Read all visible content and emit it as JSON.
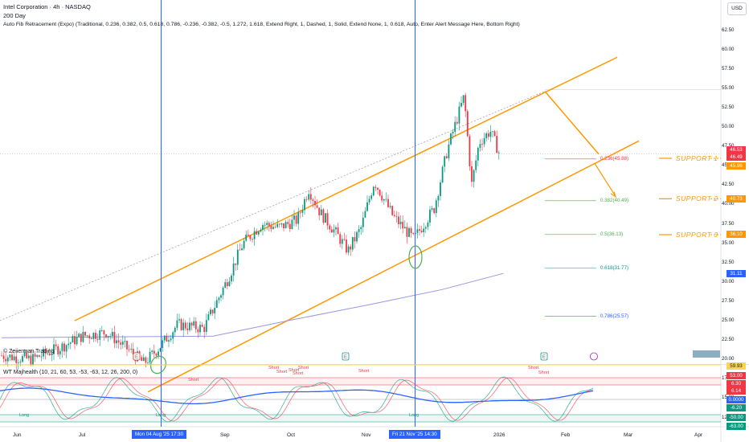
{
  "legend": {
    "symbol": "Intel Corporation · 4h · NASDAQ",
    "ma": "200 Day",
    "fib_indicator": "Auto Fib Retracement (Expo) (Traditional, 0.236, 0.382, 0.5, 0.618, 0.786, -0.236, -0.382, -0.5, 1.272, 1.618, Extend Right, 1, Dashed, 1, Solid, Extend None, 1, 0.618, Auto, Enter Alert Message Here, Bottom Right)"
  },
  "currency_button": "USD",
  "watermark": "© Zeiierman Trading",
  "indicator_title": "WT Majhealth (10, 21, 60, 53, -53, -63, 12, 26, 200, 0)",
  "price_axis": [
    "62.50",
    "60.00",
    "57.50",
    "55.00",
    "52.50",
    "50.00",
    "47.50",
    "45.00",
    "42.50",
    "40.00",
    "37.50",
    "35.00",
    "32.50",
    "30.00",
    "27.50",
    "25.00",
    "22.50",
    "20.00",
    "17.50",
    "15.00",
    "12.50"
  ],
  "price_tags": [
    {
      "text": "46.53",
      "color": "#f23645"
    },
    {
      "text": "46.49",
      "color": "#f23645"
    },
    {
      "text": "45.96",
      "color": "#ff9800"
    },
    {
      "text": "40.73",
      "color": "#ff9800"
    },
    {
      "text": "36.10",
      "color": "#ff9800"
    },
    {
      "text": "31.11",
      "color": "#2962ff"
    }
  ],
  "indicator_axis": [
    "59.93",
    "53.00",
    "6.30",
    "6.14",
    "0.0000",
    "-6.20",
    "-50.00",
    "-63.00"
  ],
  "time_axis": [
    "Jun",
    "Jul",
    "Sep",
    "Oct",
    "Nov",
    "2026",
    "Feb",
    "Mar",
    "Apr"
  ],
  "time_tags": [
    "Mon 04 Aug '25   17:30",
    "Fri 21 Nov '25   14:30"
  ],
  "fib_labels": [
    "0.236(45.88)",
    "0.382(40.49)",
    "0.5(36.13)",
    "0.618(31.77)",
    "0.786(25.57)"
  ],
  "supports": [
    "SUPPORT  1",
    "SUPPORT  2",
    "SUPPORT  3"
  ],
  "event_markers": [
    "E",
    "E",
    "E"
  ],
  "signals": [
    "Long",
    "Long",
    "Long",
    "Short",
    "Short",
    "Short",
    "Short",
    "Short",
    "Short",
    "Short",
    "Short",
    "Short"
  ],
  "colors": {
    "up": "#089981",
    "down": "#f23645",
    "channel": "#ff9800",
    "ma": "#9598e6",
    "vline": "#2962ff",
    "circle": "#4caf50"
  },
  "chart_data": {
    "type": "candlestick",
    "title": "Intel Corporation · 4h · NASDAQ",
    "x_range": [
      "2025-05",
      "2026-04"
    ],
    "ylim": [
      12.5,
      62.5
    ],
    "series": [
      {
        "name": "Price (approx closes)",
        "points": [
          [
            "2025-05-20",
            20.5
          ],
          [
            "2025-06-05",
            20.0
          ],
          [
            "2025-06-20",
            21.5
          ],
          [
            "2025-07-02",
            23.0
          ],
          [
            "2025-07-15",
            23.5
          ],
          [
            "2025-07-28",
            21.0
          ],
          [
            "2025-08-04",
            19.5
          ],
          [
            "2025-08-12",
            21.5
          ],
          [
            "2025-08-22",
            24.5
          ],
          [
            "2025-09-05",
            24.0
          ],
          [
            "2025-09-18",
            30.5
          ],
          [
            "2025-09-26",
            35.0
          ],
          [
            "2025-10-06",
            37.5
          ],
          [
            "2025-10-15",
            37.0
          ],
          [
            "2025-10-25",
            38.0
          ],
          [
            "2025-10-31",
            42.0
          ],
          [
            "2025-11-06",
            39.0
          ],
          [
            "2025-11-14",
            36.5
          ],
          [
            "2025-11-21",
            34.0
          ],
          [
            "2025-11-28",
            37.0
          ],
          [
            "2025-12-05",
            43.0
          ],
          [
            "2025-12-15",
            38.5
          ],
          [
            "2025-12-26",
            35.5
          ],
          [
            "2026-01-06",
            39.5
          ],
          [
            "2026-01-13",
            47.0
          ],
          [
            "2026-01-22",
            54.0
          ],
          [
            "2026-01-26",
            42.5
          ],
          [
            "2026-01-30",
            48.0
          ],
          [
            "2026-02-05",
            49.5
          ],
          [
            "2026-02-10",
            46.5
          ]
        ]
      },
      {
        "name": "200 Day",
        "points": [
          [
            "2025-05-20",
            22.8
          ],
          [
            "2025-09-10",
            23.0
          ],
          [
            "2025-10-20",
            25.0
          ],
          [
            "2025-12-01",
            27.0
          ],
          [
            "2026-01-10",
            29.0
          ],
          [
            "2026-02-12",
            31.1
          ]
        ]
      }
    ],
    "fib_levels": [
      {
        "level": 0.236,
        "value": 45.88
      },
      {
        "level": 0.382,
        "value": 40.49
      },
      {
        "level": 0.5,
        "value": 36.13
      },
      {
        "level": 0.618,
        "value": 31.77
      },
      {
        "level": 0.786,
        "value": 25.57
      }
    ],
    "supports": [
      45.96,
      40.73,
      36.1
    ],
    "last_price": 46.49,
    "indicator": {
      "name": "WT Majhealth",
      "levels": [
        59.93,
        53.0,
        6.3,
        6.14,
        0,
        -6.2,
        -50.0,
        -63.0
      ]
    }
  }
}
